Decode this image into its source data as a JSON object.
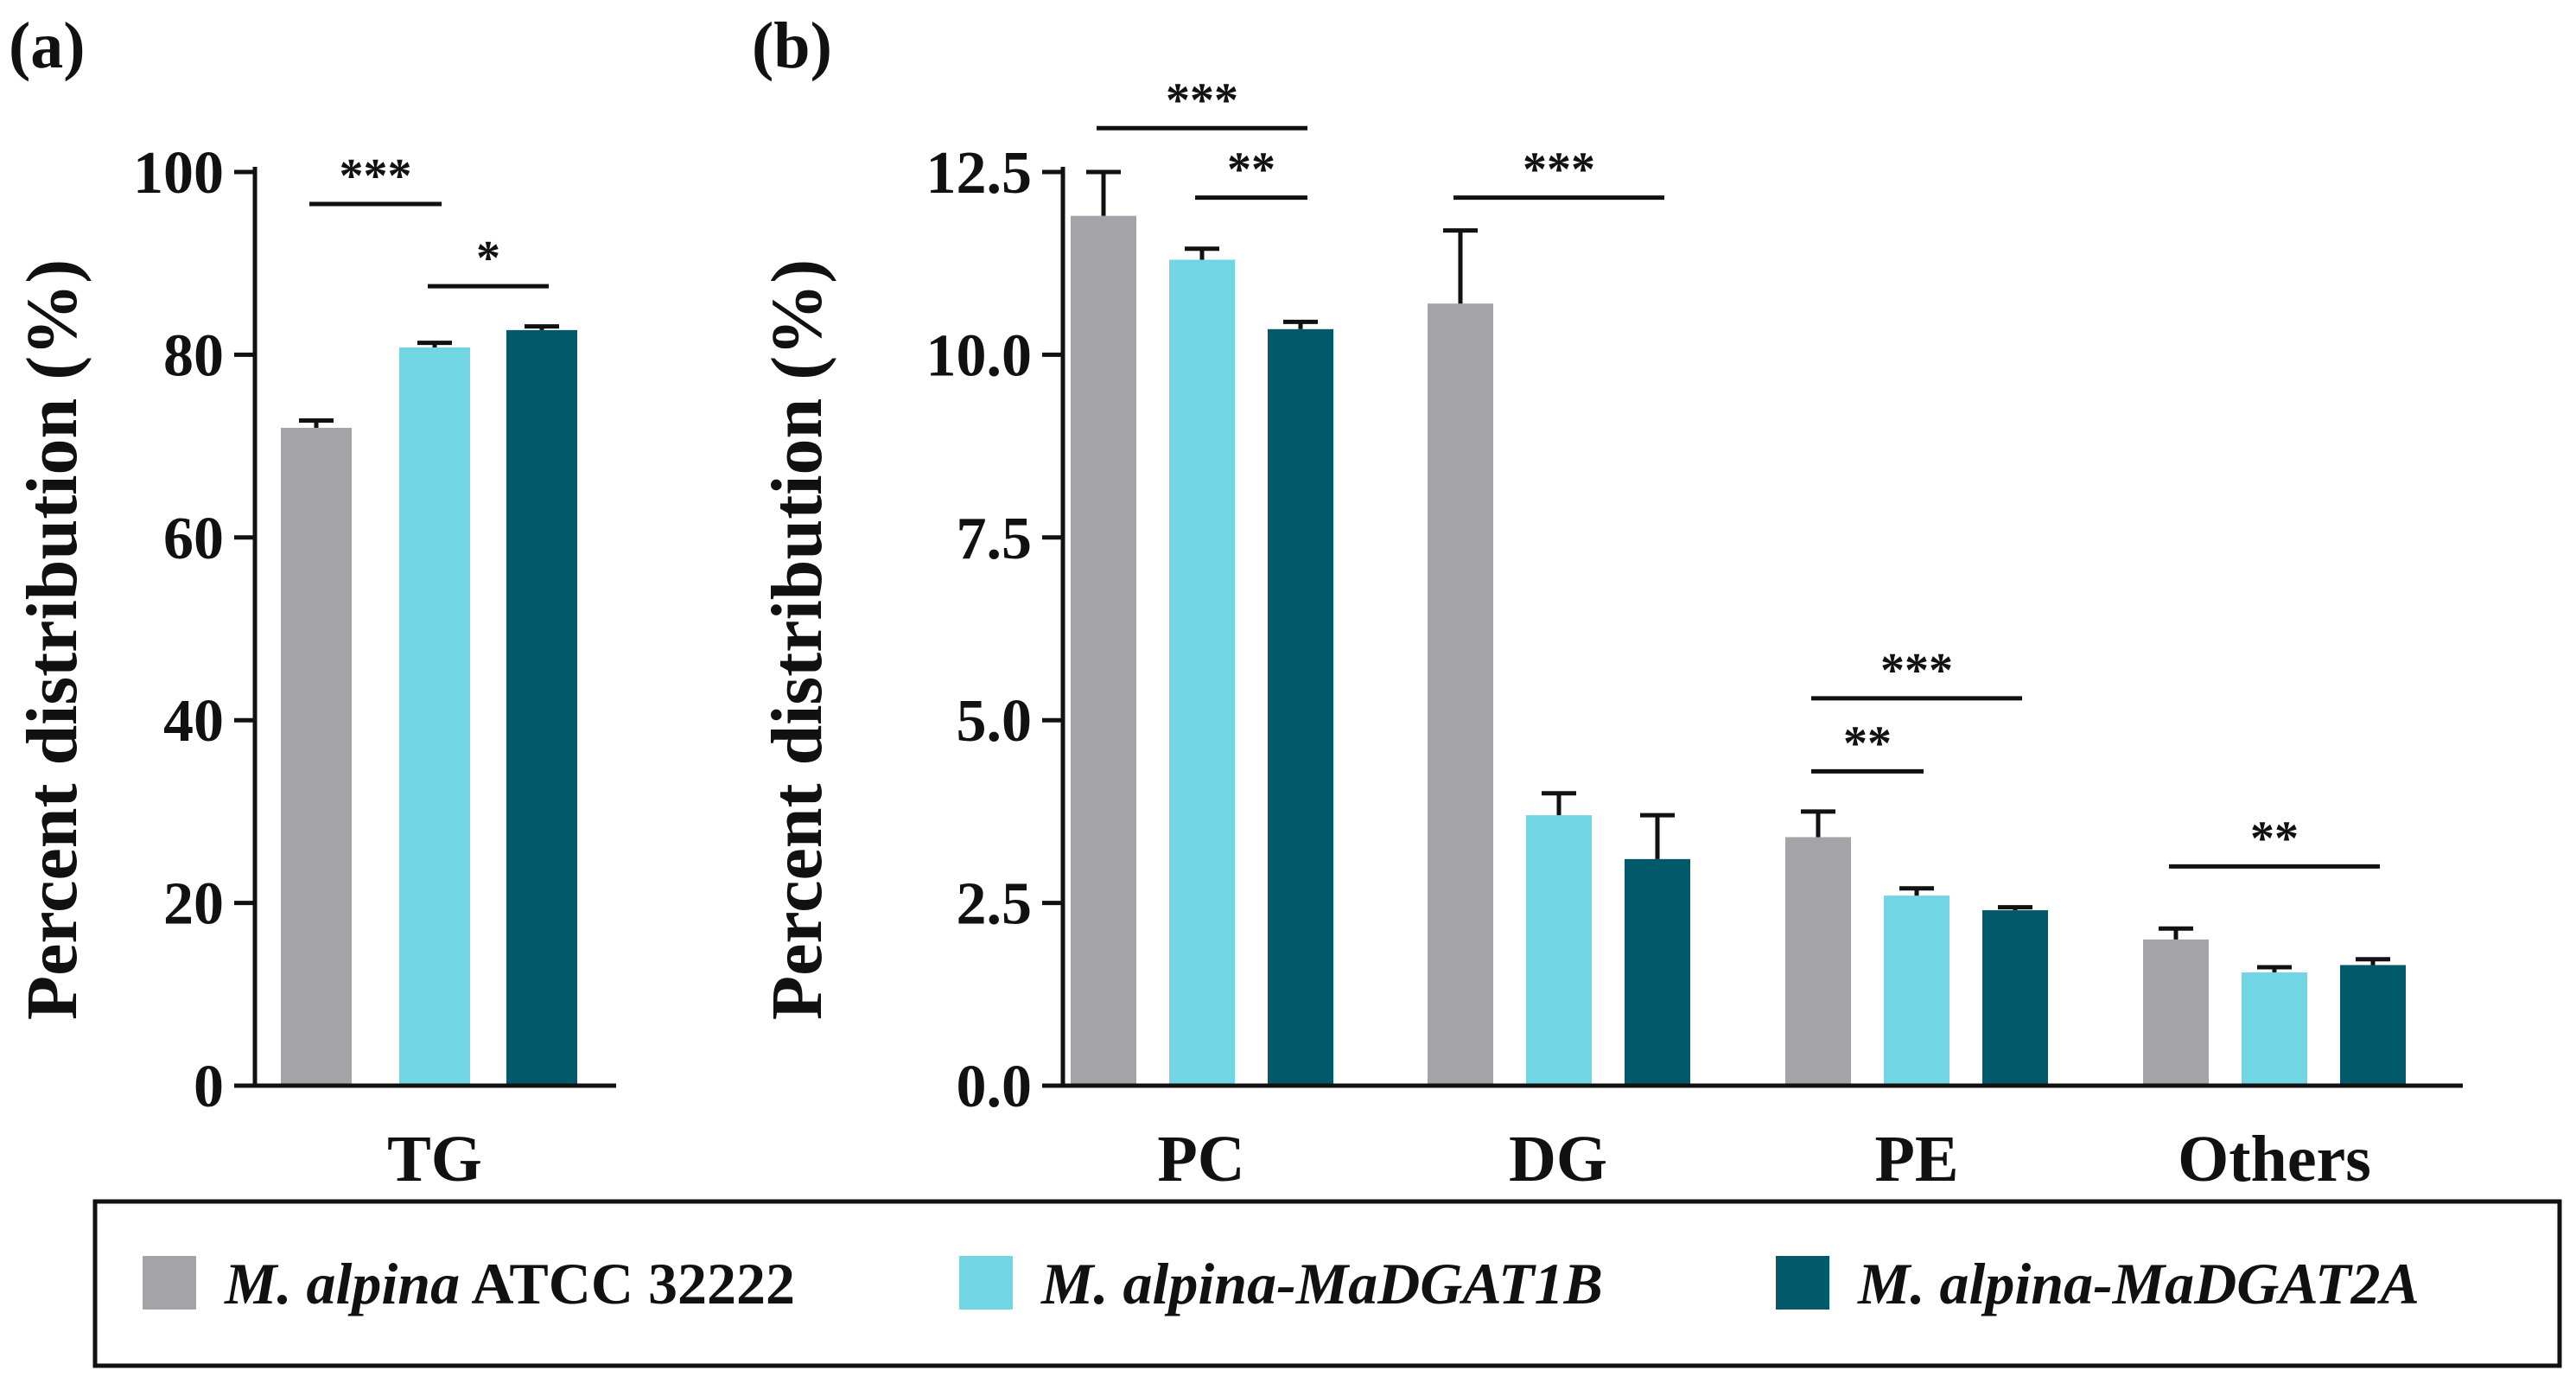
{
  "colors": {
    "series": [
      "#a4a3a8",
      "#72d5e3",
      "#02596a"
    ],
    "axis": "#111111"
  },
  "chart_data": [
    {
      "type": "bar",
      "panel_label": "(a)",
      "ylabel": "Percent distribution (%)",
      "ylim": [
        0,
        100
      ],
      "yticks": [
        "0",
        "20",
        "40",
        "60",
        "80",
        "100"
      ],
      "categories": [
        "TG"
      ],
      "series": [
        {
          "name": "M. alpina ATCC 32222",
          "values": [
            72.0
          ],
          "errors": [
            0.8
          ]
        },
        {
          "name": "M. alpina-MaDGAT1B",
          "values": [
            80.8
          ],
          "errors": [
            0.5
          ]
        },
        {
          "name": "M. alpina-MaDGAT2A",
          "values": [
            82.7
          ],
          "errors": [
            0.4
          ]
        }
      ],
      "significance": [
        {
          "category": 0,
          "from": 0,
          "to": 1,
          "label": "***",
          "y": 96.5
        },
        {
          "category": 0,
          "from": 1,
          "to": 2,
          "label": "*",
          "y": 87.5
        }
      ]
    },
    {
      "type": "bar",
      "panel_label": "(b)",
      "ylabel": "Percent distribution (%)",
      "ylim": [
        0,
        12.5
      ],
      "yticks": [
        "0.0",
        "2.5",
        "5.0",
        "7.5",
        "10.0",
        "12.5"
      ],
      "categories": [
        "PC",
        "DG",
        "PE",
        "Others"
      ],
      "series": [
        {
          "name": "M. alpina ATCC 32222",
          "values": [
            11.9,
            10.7,
            3.4,
            2.0
          ],
          "errors": [
            0.6,
            1.0,
            0.35,
            0.15
          ]
        },
        {
          "name": "M. alpina-MaDGAT1B",
          "values": [
            11.3,
            3.7,
            2.6,
            1.55
          ],
          "errors": [
            0.15,
            0.3,
            0.1,
            0.07
          ]
        },
        {
          "name": "M. alpina-MaDGAT2A",
          "values": [
            10.35,
            3.1,
            2.4,
            1.65
          ],
          "errors": [
            0.1,
            0.6,
            0.04,
            0.08
          ]
        }
      ],
      "significance": [
        {
          "category": 0,
          "from": 0,
          "to": 2,
          "label": "***",
          "y": 13.1
        },
        {
          "category": 0,
          "from": 1,
          "to": 2,
          "label": "**",
          "y": 12.15
        },
        {
          "category": 1,
          "from": 0,
          "to": 2,
          "label": "***",
          "y": 12.15
        },
        {
          "category": 2,
          "from": 0,
          "to": 2,
          "label": "***",
          "y": 5.3
        },
        {
          "category": 2,
          "from": 0,
          "to": 1,
          "label": "**",
          "y": 4.3
        },
        {
          "category": 3,
          "from": 0,
          "to": 2,
          "label": "**",
          "y": 3.0
        }
      ]
    }
  ],
  "legend": {
    "items": [
      {
        "italic": "M. alpina",
        "upright": " ATCC 32222"
      },
      {
        "italic": "M. alpina-MaDGAT1B",
        "upright": ""
      },
      {
        "italic": "M. alpina-MaDGAT2A",
        "upright": ""
      }
    ]
  }
}
